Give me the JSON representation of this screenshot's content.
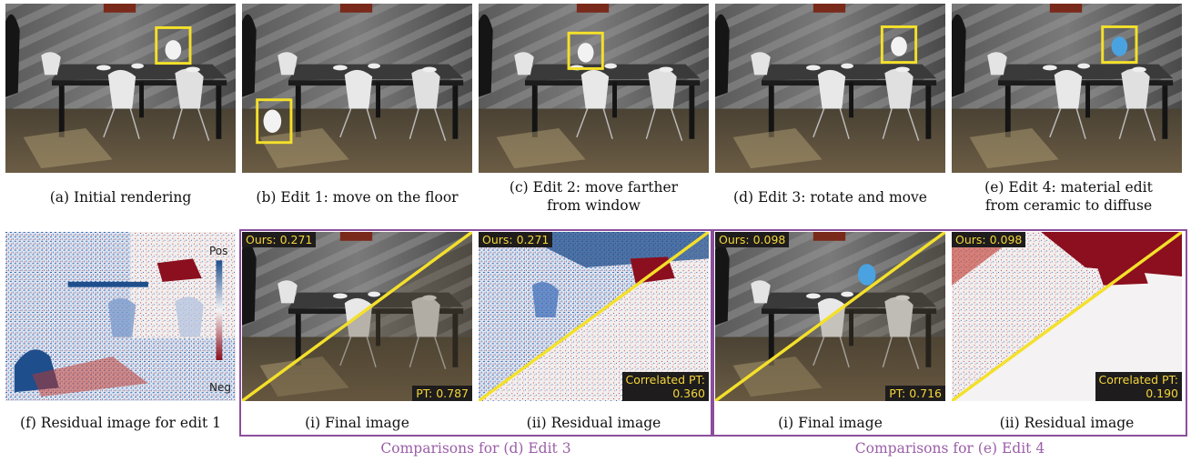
{
  "top_row": [
    {
      "id": "a",
      "caption": "(a) Initial rendering"
    },
    {
      "id": "b",
      "caption": "(b) Edit 1: move on the floor"
    },
    {
      "id": "c",
      "caption_line1": "(c) Edit 2: move farther",
      "caption_line2": "from window"
    },
    {
      "id": "d",
      "caption": "(d) Edit 3: rotate and move"
    },
    {
      "id": "e",
      "caption_line1": "(e) Edit 4: material edit",
      "caption_line2": "from ceramic to diffuse"
    }
  ],
  "residual_f": {
    "caption": "(f) Residual image for edit 1",
    "legend_pos": "Pos",
    "legend_neg": "Neg"
  },
  "group_d": {
    "caption": "Comparisons for (d) Edit 3",
    "final": {
      "caption": "(i) Final image",
      "ours": "Ours: 0.271",
      "baseline": "PT: 0.787"
    },
    "residual": {
      "caption": "(ii) Residual image",
      "ours": "Ours: 0.271",
      "baseline_line1": "Correlated PT:",
      "baseline_line2": "0.360"
    }
  },
  "group_e": {
    "caption": "Comparisons for (e) Edit 4",
    "final": {
      "caption": "(i) Final image",
      "ours": "Ours: 0.098",
      "baseline": "PT: 0.716"
    },
    "residual": {
      "caption": "(ii) Residual image",
      "ours": "Ours: 0.098",
      "baseline_line1": "Correlated PT:",
      "baseline_line2": "0.190"
    }
  },
  "colors": {
    "highlight": "#f4e02a",
    "frame": "#8b4f9c",
    "residual_pos": "#1f4e8c",
    "residual_neg": "#8b0f1e",
    "teapot_diffuse": "#4aa3e0"
  }
}
